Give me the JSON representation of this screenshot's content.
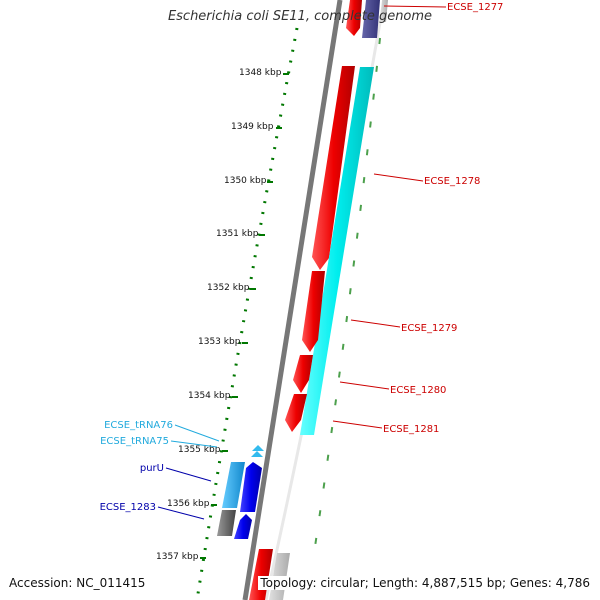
{
  "title": "Escherichia coli SE11, complete genome",
  "accession": "Accession: NC_011415",
  "summary": "Topology: circular; Length: 4,887,515 bp; Genes: 4,786",
  "colors": {
    "cds_forward": "#ff0000",
    "cds_reverse_track": "#00ffff",
    "gene_blue": "#0000ff",
    "trna": "#33bbee",
    "other_gray": "#777777",
    "tick_green": "#007700",
    "label_red": "#cc0000",
    "label_blue": "#0000aa",
    "label_cyan": "#22aadd"
  },
  "ticks": [
    "1348 kbp",
    "1349 kbp",
    "1350 kbp",
    "1351 kbp",
    "1352 kbp",
    "1353 kbp",
    "1354 kbp",
    "1355 kbp",
    "1356 kbp",
    "1357 kbp"
  ],
  "features": [
    {
      "label": "ECSE_1277",
      "color": "label_red"
    },
    {
      "label": "ECSE_1278",
      "color": "label_red"
    },
    {
      "label": "ECSE_1279",
      "color": "label_red"
    },
    {
      "label": "ECSE_1280",
      "color": "label_red"
    },
    {
      "label": "ECSE_1281",
      "color": "label_red"
    },
    {
      "label": "ECSE_tRNA76",
      "color": "label_cyan"
    },
    {
      "label": "ECSE_tRNA75",
      "color": "label_cyan"
    },
    {
      "label": "purU",
      "color": "label_blue"
    },
    {
      "label": "ECSE_1283",
      "color": "label_blue"
    }
  ]
}
